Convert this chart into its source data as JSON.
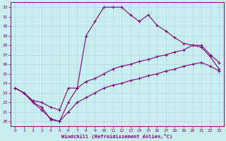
{
  "xlabel": "Windchill (Refroidissement éolien,°C)",
  "bg_color": "#c8eef0",
  "line_color": "#800080",
  "xlim": [
    -0.5,
    23.5
  ],
  "ylim": [
    19.5,
    32.5
  ],
  "xticks": [
    0,
    1,
    2,
    3,
    4,
    5,
    6,
    7,
    8,
    9,
    10,
    11,
    12,
    13,
    14,
    15,
    16,
    17,
    18,
    19,
    20,
    21,
    22,
    23
  ],
  "yticks": [
    20,
    21,
    22,
    23,
    24,
    25,
    26,
    27,
    28,
    29,
    30,
    31,
    32
  ],
  "line1_x": [
    0,
    1,
    2,
    3,
    4,
    5,
    6,
    7,
    8,
    9,
    10,
    11,
    12,
    13,
    14,
    15,
    16,
    17,
    18,
    19,
    20,
    21,
    22,
    23
  ],
  "line1_y": [
    23.5,
    23.0,
    22.0,
    21.5,
    20.2,
    20.0,
    22.0,
    23.5,
    29.0,
    30.5,
    32.0,
    32.0,
    32.0,
    31.2,
    30.5,
    31.2,
    30.1,
    29.5,
    28.8,
    28.2,
    28.0,
    27.8,
    26.8,
    25.5
  ],
  "line2_x": [
    0,
    1,
    2,
    3,
    4,
    5,
    6,
    7,
    8,
    9,
    10,
    11,
    12,
    13,
    14,
    15,
    16,
    17,
    18,
    19,
    20,
    21,
    22,
    23
  ],
  "line2_y": [
    23.5,
    23.0,
    22.2,
    22.0,
    21.5,
    21.2,
    23.5,
    23.5,
    24.2,
    24.5,
    25.0,
    25.5,
    25.8,
    26.0,
    26.3,
    26.5,
    26.8,
    27.0,
    27.3,
    27.5,
    28.0,
    28.0,
    27.0,
    26.2
  ],
  "line3_x": [
    0,
    1,
    2,
    3,
    4,
    5,
    6,
    7,
    8,
    9,
    10,
    11,
    12,
    13,
    14,
    15,
    16,
    17,
    18,
    19,
    20,
    21,
    22,
    23
  ],
  "line3_y": [
    23.5,
    23.0,
    22.0,
    21.2,
    20.3,
    20.0,
    21.0,
    22.0,
    22.5,
    23.0,
    23.5,
    23.8,
    24.0,
    24.3,
    24.5,
    24.8,
    25.0,
    25.3,
    25.5,
    25.8,
    26.0,
    26.2,
    25.8,
    25.3
  ]
}
